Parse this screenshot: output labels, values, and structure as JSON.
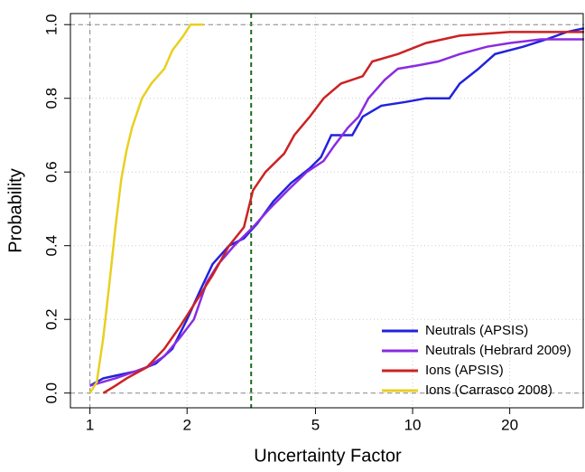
{
  "chart_data": {
    "type": "line",
    "x_label": "Uncertainty Factor",
    "y_label": "Probability",
    "log_x": true,
    "xlim": [
      0.87,
      34
    ],
    "ylim": [
      -0.04,
      1.03
    ],
    "xticks": [
      1,
      2,
      5,
      10,
      20
    ],
    "yticks": [
      {
        "value": 0,
        "label": "0.0"
      },
      0.2,
      0.4,
      0.6,
      0.8,
      {
        "value": 1,
        "label": "1.0"
      }
    ],
    "grid": true,
    "legend": "bottom right",
    "reference_lines": [
      {
        "axis": "x",
        "value": 1,
        "color": "#888888"
      },
      {
        "axis": "x",
        "value": 3.16,
        "color": "#1a6b1a"
      },
      {
        "axis": "y",
        "value": 0,
        "color": "#888888"
      },
      {
        "axis": "y",
        "value": 1,
        "color": "#888888"
      }
    ],
    "series": [
      {
        "name": "Neutrals (APSIS)",
        "color": "#2222dd",
        "x": [
          1.0,
          1.1,
          1.4,
          1.6,
          1.8,
          2.0,
          2.2,
          2.4,
          2.7,
          3.0,
          3.3,
          3.7,
          4.2,
          4.8,
          5.2,
          5.6,
          6.5,
          7,
          8,
          9.5,
          11,
          13,
          14,
          16,
          18,
          22,
          26,
          30,
          34
        ],
        "values": [
          0.02,
          0.04,
          0.06,
          0.08,
          0.12,
          0.2,
          0.28,
          0.35,
          0.4,
          0.42,
          0.46,
          0.52,
          0.57,
          0.61,
          0.64,
          0.7,
          0.7,
          0.75,
          0.78,
          0.79,
          0.8,
          0.8,
          0.84,
          0.88,
          0.92,
          0.94,
          0.96,
          0.98,
          0.99
        ]
      },
      {
        "name": "Neutrals (Hebrard 2009)",
        "color": "#8a2be2",
        "x": [
          1.0,
          1.2,
          1.5,
          1.7,
          1.9,
          2.1,
          2.3,
          2.5,
          2.8,
          3.2,
          3.6,
          4.1,
          4.7,
          5.3,
          5.7,
          6.3,
          6.8,
          7.3,
          8.2,
          9,
          10.5,
          12,
          14,
          17,
          20,
          25,
          34
        ],
        "values": [
          0.02,
          0.04,
          0.07,
          0.1,
          0.15,
          0.2,
          0.3,
          0.35,
          0.4,
          0.45,
          0.5,
          0.55,
          0.6,
          0.63,
          0.67,
          0.72,
          0.75,
          0.8,
          0.85,
          0.88,
          0.89,
          0.9,
          0.92,
          0.94,
          0.95,
          0.96,
          0.96
        ]
      },
      {
        "name": "Ions (APSIS)",
        "color": "#cc2222",
        "x": [
          1.1,
          1.2,
          1.3,
          1.5,
          1.7,
          1.9,
          2.1,
          2.4,
          2.7,
          3.0,
          3.2,
          3.5,
          4.0,
          4.3,
          4.8,
          5.3,
          6,
          7,
          7.5,
          9,
          11,
          14,
          20,
          34
        ],
        "values": [
          0.0,
          0.02,
          0.04,
          0.07,
          0.12,
          0.18,
          0.24,
          0.32,
          0.4,
          0.45,
          0.55,
          0.6,
          0.65,
          0.7,
          0.75,
          0.8,
          0.84,
          0.86,
          0.9,
          0.92,
          0.95,
          0.97,
          0.98,
          0.98
        ]
      },
      {
        "name": "Ions (Carrasco 2008)",
        "color": "#e8d020",
        "x": [
          1.0,
          1.05,
          1.1,
          1.15,
          1.2,
          1.25,
          1.3,
          1.35,
          1.45,
          1.55,
          1.7,
          1.8,
          1.95,
          2.05,
          2.25
        ],
        "values": [
          0.0,
          0.03,
          0.15,
          0.3,
          0.45,
          0.58,
          0.66,
          0.72,
          0.8,
          0.84,
          0.88,
          0.93,
          0.97,
          1.0,
          1.0
        ]
      }
    ]
  }
}
